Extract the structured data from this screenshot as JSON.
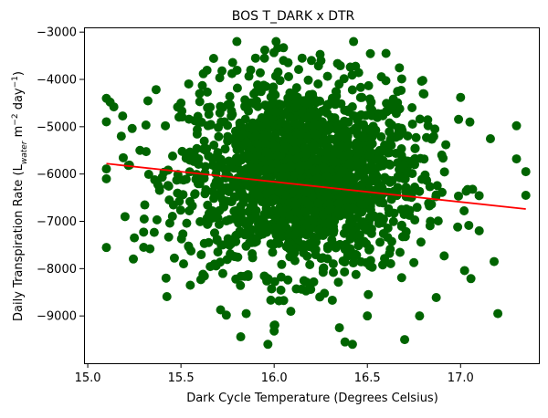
{
  "chart_data": {
    "type": "scatter",
    "title": "BOS T_DARK x DTR",
    "xlabel": "Dark Cycle Temperature (Degrees Celsius)",
    "ylabel": {
      "prefix": "Daily Transpiration Rate (L",
      "sub": "water",
      "mid": " m",
      "sup1": "−2",
      "mid2": " day",
      "sup2": "−1",
      "suffix": ")"
    },
    "xlim": [
      14.98,
      17.42
    ],
    "ylim": [
      -10000,
      -2900
    ],
    "xticks": [
      15.0,
      15.5,
      16.0,
      16.5,
      17.0
    ],
    "xtick_labels": [
      "15.0",
      "15.5",
      "16.0",
      "16.5",
      "17.0"
    ],
    "yticks": [
      -9000,
      -8000,
      -7000,
      -6000,
      -5000,
      -4000,
      -3000
    ],
    "ytick_labels": [
      "−9000",
      "−8000",
      "−7000",
      "−6000",
      "−5000",
      "−4000",
      "−3000"
    ],
    "grid": false,
    "scatter_color": "#006400",
    "regression_color": "#ff0000",
    "regression_line": {
      "x": [
        15.1,
        17.35
      ],
      "y": [
        -5780,
        -6740
      ]
    },
    "cloud": {
      "center_x": 16.15,
      "center_y": -6050,
      "sd_x": 0.32,
      "sd_y": 1000,
      "n": 1800
    },
    "points": [
      {
        "x": 15.1,
        "y": -4400
      },
      {
        "x": 15.12,
        "y": -4480
      },
      {
        "x": 15.14,
        "y": -4580
      },
      {
        "x": 15.1,
        "y": -6100
      },
      {
        "x": 15.25,
        "y": -7350
      },
      {
        "x": 15.3,
        "y": -7550
      },
      {
        "x": 15.42,
        "y": -8200
      },
      {
        "x": 15.55,
        "y": -8350
      },
      {
        "x": 15.62,
        "y": -3880
      },
      {
        "x": 15.72,
        "y": -3820
      },
      {
        "x": 15.8,
        "y": -3200
      },
      {
        "x": 15.9,
        "y": -3550
      },
      {
        "x": 15.95,
        "y": -3380
      },
      {
        "x": 16.05,
        "y": -3330
      },
      {
        "x": 16.15,
        "y": -3550
      },
      {
        "x": 16.0,
        "y": -9200
      },
      {
        "x": 16.0,
        "y": -9320
      },
      {
        "x": 16.35,
        "y": -9250
      },
      {
        "x": 16.38,
        "y": -9550
      },
      {
        "x": 16.42,
        "y": -9600
      },
      {
        "x": 16.6,
        "y": -3450
      },
      {
        "x": 16.7,
        "y": -9500
      },
      {
        "x": 16.78,
        "y": -9000
      },
      {
        "x": 17.0,
        "y": -4380
      },
      {
        "x": 17.05,
        "y": -4900
      },
      {
        "x": 17.18,
        "y": -7850
      },
      {
        "x": 17.2,
        "y": -8950
      },
      {
        "x": 17.3,
        "y": -4980
      },
      {
        "x": 17.3,
        "y": -5680
      },
      {
        "x": 17.35,
        "y": -5950
      },
      {
        "x": 17.35,
        "y": -6450
      },
      {
        "x": 16.05,
        "y": -3600
      },
      {
        "x": 16.2,
        "y": -3600
      },
      {
        "x": 15.5,
        "y": -4500
      },
      {
        "x": 15.6,
        "y": -4300
      },
      {
        "x": 15.85,
        "y": -8950
      },
      {
        "x": 16.5,
        "y": -9000
      },
      {
        "x": 16.8,
        "y": -4300
      },
      {
        "x": 17.1,
        "y": -7200
      },
      {
        "x": 15.2,
        "y": -6900
      },
      {
        "x": 15.18,
        "y": -5200
      },
      {
        "x": 15.28,
        "y": -5500
      }
    ]
  }
}
